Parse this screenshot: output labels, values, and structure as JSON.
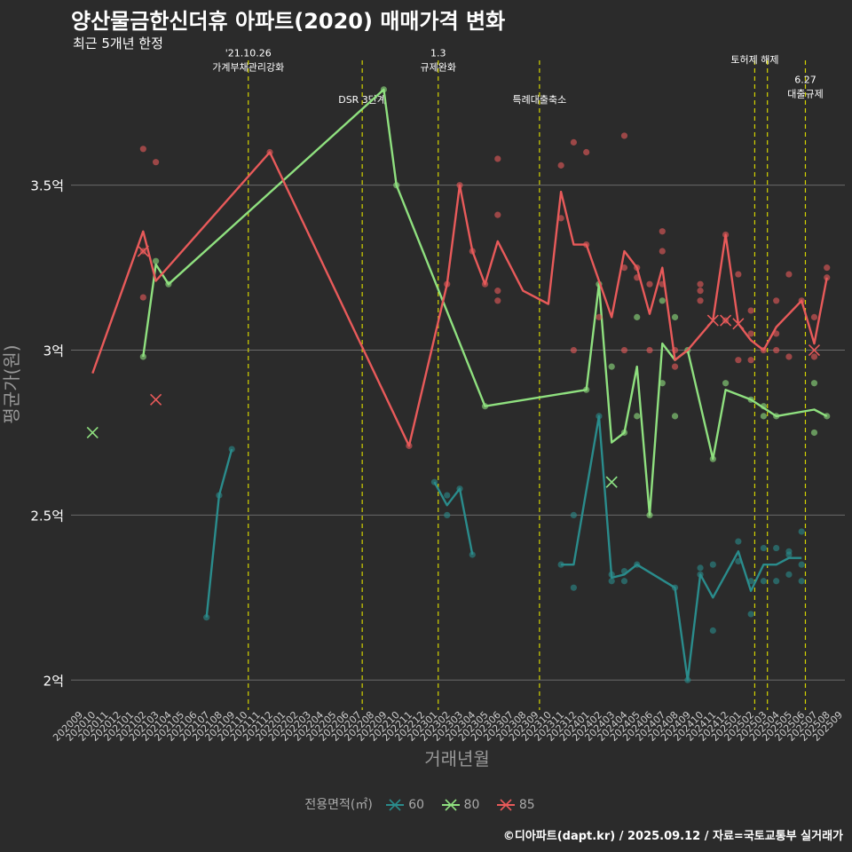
{
  "title": "양산물금한신더휴 아파트(2020) 매매가격 변화",
  "subtitle": "최근 5개년 한정",
  "caption": "©디아파트(dapt.kr) / 2025.09.12 / 자료=국토교통부 실거래가",
  "legend": {
    "title": "전용면적(㎡)",
    "items": [
      {
        "label": "60",
        "color": "#2a8c8c"
      },
      {
        "label": "80",
        "color": "#8fe07f"
      },
      {
        "label": "85",
        "color": "#e85a5a"
      }
    ]
  },
  "chart_data": {
    "type": "line",
    "title": "양산물금한신더휴 아파트(2020) 매매가격 변화",
    "subtitle": "최근 5개년 한정",
    "xlabel": "거래년월",
    "ylabel": "평균가(원)",
    "x_categories": [
      "202009",
      "202010",
      "202011",
      "202012",
      "202101",
      "202102",
      "202103",
      "202104",
      "202105",
      "202106",
      "202107",
      "202108",
      "202109",
      "202110",
      "202111",
      "202112",
      "202201",
      "202202",
      "202203",
      "202204",
      "202205",
      "202206",
      "202207",
      "202208",
      "202209",
      "202210",
      "202211",
      "202212",
      "202301",
      "202302",
      "202303",
      "202304",
      "202305",
      "202306",
      "202307",
      "202308",
      "202309",
      "202310",
      "202311",
      "202312",
      "202401",
      "202402",
      "202403",
      "202404",
      "202405",
      "202406",
      "202407",
      "202408",
      "202409",
      "202410",
      "202411",
      "202412",
      "202501",
      "202502",
      "202503",
      "202504",
      "202505",
      "202506",
      "202507",
      "202508",
      "202509"
    ],
    "ylim": [
      1.92,
      3.9
    ],
    "y_ticks": [
      {
        "value": 2.0,
        "label": "2억"
      },
      {
        "value": 2.5,
        "label": "2.5억"
      },
      {
        "value": 3.0,
        "label": "3억"
      },
      {
        "value": 3.5,
        "label": "3.5억"
      }
    ],
    "grid": "horizontal",
    "legend_position": "bottom",
    "events": [
      {
        "x": 13.3,
        "lines": [
          "'21.10.26",
          "가계부채관리강화"
        ],
        "label_y": 3.89
      },
      {
        "x": 22.3,
        "lines": [
          "DSR 3단계"
        ],
        "label_y": 3.75
      },
      {
        "x": 28.3,
        "lines": [
          "1.3",
          "규제완화"
        ],
        "label_y": 3.89
      },
      {
        "x": 36.3,
        "lines": [
          "특례대출축소"
        ],
        "label_y": 3.75
      },
      {
        "x": 53.3,
        "lines": [
          "토허제 해제"
        ],
        "label_y": 3.87
      },
      {
        "x": 54.3,
        "lines": [],
        "label_y": 3.87
      },
      {
        "x": 57.3,
        "lines": [
          "6.27",
          "대출규제"
        ],
        "label_y": 3.81
      }
    ],
    "series": [
      {
        "name": "60",
        "color": "#2a8c8c",
        "line": [
          [
            [
              10,
              2.19
            ],
            [
              11,
              2.56
            ],
            [
              12,
              2.7
            ]
          ],
          [
            [
              28,
              2.6
            ],
            [
              29,
              2.53
            ],
            [
              30,
              2.58
            ],
            [
              31,
              2.38
            ]
          ],
          [
            [
              38,
              2.35
            ],
            [
              39,
              2.35
            ],
            [
              41,
              2.8
            ],
            [
              42,
              2.31
            ],
            [
              43,
              2.32
            ],
            [
              44,
              2.35
            ],
            [
              47,
              2.28
            ],
            [
              48,
              2.0
            ],
            [
              49,
              2.32
            ],
            [
              50,
              2.25
            ],
            [
              52,
              2.39
            ],
            [
              53,
              2.27
            ],
            [
              54,
              2.35
            ],
            [
              55,
              2.35
            ],
            [
              56,
              2.37
            ],
            [
              57,
              2.37
            ]
          ]
        ],
        "points": [
          [
            10,
            2.19
          ],
          [
            11,
            2.56
          ],
          [
            12,
            2.7
          ],
          [
            28,
            2.6
          ],
          [
            29,
            2.56
          ],
          [
            29,
            2.5
          ],
          [
            30,
            2.58
          ],
          [
            31,
            2.38
          ],
          [
            38,
            2.35
          ],
          [
            39,
            2.28
          ],
          [
            39,
            2.5
          ],
          [
            41,
            2.8
          ],
          [
            42,
            2.3
          ],
          [
            42,
            2.32
          ],
          [
            43,
            2.3
          ],
          [
            43,
            2.33
          ],
          [
            44,
            2.35
          ],
          [
            47,
            2.28
          ],
          [
            48,
            2.0
          ],
          [
            49,
            2.32
          ],
          [
            49,
            2.34
          ],
          [
            50,
            2.35
          ],
          [
            50,
            2.15
          ],
          [
            52,
            2.42
          ],
          [
            52,
            2.36
          ],
          [
            53,
            2.2
          ],
          [
            53,
            2.3
          ],
          [
            54,
            2.3
          ],
          [
            54,
            2.4
          ],
          [
            55,
            2.3
          ],
          [
            55,
            2.4
          ],
          [
            56,
            2.32
          ],
          [
            56,
            2.39
          ],
          [
            56,
            2.38
          ],
          [
            57,
            2.45
          ],
          [
            57,
            2.3
          ],
          [
            57,
            2.35
          ]
        ],
        "crosses": [
          [
            42,
            2.6
          ]
        ]
      },
      {
        "name": "80",
        "color": "#8fe07f",
        "line": [
          [
            [
              5,
              2.98
            ],
            [
              6,
              3.26
            ],
            [
              7,
              3.2
            ],
            [
              24,
              3.79
            ],
            [
              25,
              3.5
            ],
            [
              32,
              2.83
            ],
            [
              40,
              2.88
            ],
            [
              41,
              3.2
            ],
            [
              42,
              2.72
            ],
            [
              43,
              2.75
            ],
            [
              44,
              2.95
            ],
            [
              45,
              2.5
            ],
            [
              46,
              3.02
            ],
            [
              47,
              2.97
            ],
            [
              48,
              3.0
            ],
            [
              50,
              2.67
            ],
            [
              51,
              2.88
            ],
            [
              53,
              2.85
            ],
            [
              55,
              2.8
            ],
            [
              58,
              2.82
            ],
            [
              59,
              2.8
            ]
          ]
        ],
        "points": [
          [
            5,
            2.98
          ],
          [
            6,
            3.27
          ],
          [
            7,
            3.2
          ],
          [
            24,
            3.79
          ],
          [
            25,
            3.5
          ],
          [
            32,
            2.83
          ],
          [
            40,
            2.88
          ],
          [
            41,
            3.2
          ],
          [
            42,
            2.95
          ],
          [
            43,
            2.75
          ],
          [
            44,
            2.8
          ],
          [
            44,
            3.1
          ],
          [
            45,
            2.5
          ],
          [
            46,
            3.15
          ],
          [
            46,
            2.9
          ],
          [
            47,
            2.8
          ],
          [
            47,
            3.1
          ],
          [
            48,
            3.0
          ],
          [
            50,
            2.67
          ],
          [
            51,
            2.9
          ],
          [
            53,
            2.85
          ],
          [
            54,
            2.8
          ],
          [
            54,
            2.83
          ],
          [
            55,
            2.8
          ],
          [
            58,
            2.75
          ],
          [
            58,
            2.9
          ],
          [
            59,
            2.8
          ]
        ],
        "crosses": [
          [
            1,
            2.75
          ],
          [
            42,
            2.6
          ]
        ]
      },
      {
        "name": "85",
        "color": "#e85a5a",
        "line": [
          [
            [
              1,
              2.93
            ],
            [
              5,
              3.36
            ],
            [
              6,
              3.21
            ],
            [
              15,
              3.6
            ],
            [
              26,
              2.71
            ],
            [
              29,
              3.2
            ],
            [
              30,
              3.5
            ],
            [
              31,
              3.3
            ],
            [
              32,
              3.2
            ],
            [
              33,
              3.33
            ],
            [
              35,
              3.18
            ],
            [
              37,
              3.14
            ],
            [
              38,
              3.48
            ],
            [
              39,
              3.32
            ],
            [
              40,
              3.32
            ],
            [
              42,
              3.1
            ],
            [
              43,
              3.3
            ],
            [
              44,
              3.25
            ],
            [
              45,
              3.11
            ],
            [
              46,
              3.25
            ],
            [
              47,
              2.97
            ],
            [
              48,
              3.0
            ],
            [
              50,
              3.09
            ],
            [
              51,
              3.35
            ],
            [
              52,
              3.08
            ],
            [
              53,
              3.03
            ],
            [
              54,
              3.0
            ],
            [
              55,
              3.07
            ],
            [
              57,
              3.15
            ],
            [
              58,
              3.02
            ],
            [
              59,
              3.22
            ]
          ]
        ],
        "points": [
          [
            5,
            3.61
          ],
          [
            5,
            3.16
          ],
          [
            5,
            3.3
          ],
          [
            6,
            3.57
          ],
          [
            15,
            3.6
          ],
          [
            26,
            2.71
          ],
          [
            29,
            3.2
          ],
          [
            30,
            3.5
          ],
          [
            31,
            3.3
          ],
          [
            32,
            3.2
          ],
          [
            33,
            3.58
          ],
          [
            33,
            3.41
          ],
          [
            33,
            3.18
          ],
          [
            33,
            3.15
          ],
          [
            38,
            3.56
          ],
          [
            38,
            3.4
          ],
          [
            39,
            3.63
          ],
          [
            39,
            3.0
          ],
          [
            40,
            3.6
          ],
          [
            40,
            3.32
          ],
          [
            41,
            3.1
          ],
          [
            43,
            3.65
          ],
          [
            43,
            3.25
          ],
          [
            43,
            3.0
          ],
          [
            44,
            3.25
          ],
          [
            44,
            3.22
          ],
          [
            45,
            3.2
          ],
          [
            45,
            3.0
          ],
          [
            46,
            3.36
          ],
          [
            46,
            3.3
          ],
          [
            46,
            3.2
          ],
          [
            47,
            3.0
          ],
          [
            47,
            2.95
          ],
          [
            49,
            3.2
          ],
          [
            49,
            3.18
          ],
          [
            49,
            3.15
          ],
          [
            51,
            3.35
          ],
          [
            51,
            3.09
          ],
          [
            52,
            3.23
          ],
          [
            52,
            2.97
          ],
          [
            53,
            3.12
          ],
          [
            53,
            3.05
          ],
          [
            53,
            2.97
          ],
          [
            54,
            3.0
          ],
          [
            55,
            3.15
          ],
          [
            55,
            3.05
          ],
          [
            55,
            3.0
          ],
          [
            56,
            3.23
          ],
          [
            56,
            2.98
          ],
          [
            57,
            3.15
          ],
          [
            58,
            3.1
          ],
          [
            58,
            2.98
          ],
          [
            59,
            3.25
          ],
          [
            59,
            3.22
          ]
        ],
        "crosses": [
          [
            5,
            3.3
          ],
          [
            6,
            2.85
          ],
          [
            50,
            3.09
          ],
          [
            51,
            3.09
          ],
          [
            52,
            3.08
          ],
          [
            58,
            3.0
          ]
        ]
      }
    ]
  }
}
